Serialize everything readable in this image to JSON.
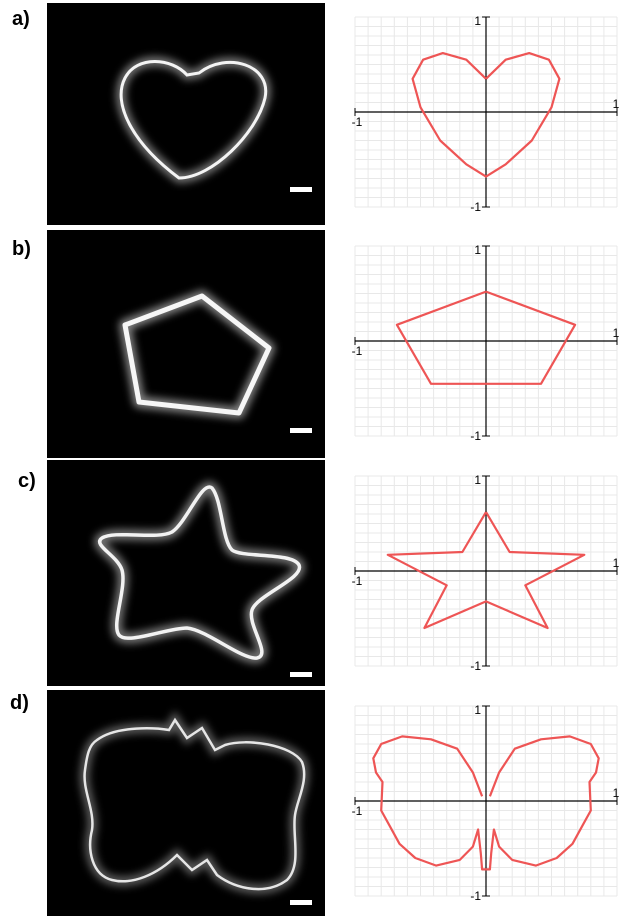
{
  "figure": {
    "panels": [
      {
        "label": "a)",
        "shape": "heart"
      },
      {
        "label": "b)",
        "shape": "pentagon"
      },
      {
        "label": "c)",
        "shape": "star"
      },
      {
        "label": "d)",
        "shape": "butterfly"
      }
    ],
    "axis_ticks": {
      "neg": "-1",
      "pos": "1"
    },
    "colors": {
      "curve": "#ee5555",
      "photo_bg": "#000000",
      "glow": "#ffffff",
      "grid": "#e8e8e8"
    }
  },
  "chart_data": [
    {
      "type": "line",
      "shape": "heart",
      "xlim": [
        -1,
        1
      ],
      "ylim": [
        -1,
        1
      ],
      "grid": true,
      "x": [
        0,
        -0.15,
        -0.33,
        -0.48,
        -0.56,
        -0.5,
        -0.35,
        -0.15,
        0,
        0.15,
        0.35,
        0.5,
        0.56,
        0.48,
        0.33,
        0.15,
        0
      ],
      "y": [
        0.35,
        0.55,
        0.62,
        0.55,
        0.35,
        0.05,
        -0.3,
        -0.55,
        -0.68,
        -0.55,
        -0.3,
        0.05,
        0.35,
        0.55,
        0.62,
        0.55,
        0.35
      ]
    },
    {
      "type": "line",
      "shape": "pentagon",
      "xlim": [
        -1,
        1
      ],
      "ylim": [
        -1,
        1
      ],
      "grid": true,
      "x": [
        0,
        0.68,
        0.42,
        -0.42,
        -0.68,
        0
      ],
      "y": [
        0.52,
        0.17,
        -0.45,
        -0.45,
        0.17,
        0.52
      ]
    },
    {
      "type": "line",
      "shape": "star",
      "xlim": [
        -1,
        1
      ],
      "ylim": [
        -1,
        1
      ],
      "grid": true,
      "x": [
        0,
        0.18,
        0.75,
        0.3,
        0.47,
        0,
        -0.47,
        -0.3,
        -0.75,
        -0.18,
        0
      ],
      "y": [
        0.62,
        0.2,
        0.17,
        -0.15,
        -0.6,
        -0.32,
        -0.6,
        -0.15,
        0.17,
        0.2,
        0.62
      ]
    },
    {
      "type": "line",
      "shape": "butterfly",
      "xlim": [
        -1,
        1
      ],
      "ylim": [
        -1,
        1
      ],
      "grid": true,
      "x": [
        0.03,
        0.1,
        0.22,
        0.42,
        0.64,
        0.8,
        0.86,
        0.84,
        0.79,
        0.8,
        0.74,
        0.66,
        0.54,
        0.38,
        0.2,
        0.1,
        0.06,
        0.04,
        0.03,
        -0.03,
        -0.04,
        -0.06,
        -0.1,
        -0.2,
        -0.38,
        -0.54,
        -0.66,
        -0.74,
        -0.8,
        -0.79,
        -0.84,
        -0.86,
        -0.8,
        -0.64,
        -0.42,
        -0.22,
        -0.1,
        -0.03
      ],
      "y": [
        0.05,
        0.3,
        0.55,
        0.65,
        0.68,
        0.6,
        0.45,
        0.3,
        0.2,
        -0.1,
        -0.25,
        -0.45,
        -0.6,
        -0.68,
        -0.62,
        -0.48,
        -0.3,
        -0.55,
        -0.72,
        -0.72,
        -0.55,
        -0.3,
        -0.48,
        -0.62,
        -0.68,
        -0.6,
        -0.45,
        -0.25,
        -0.1,
        0.2,
        0.3,
        0.45,
        0.6,
        0.68,
        0.65,
        0.55,
        0.3,
        0.05
      ]
    }
  ]
}
